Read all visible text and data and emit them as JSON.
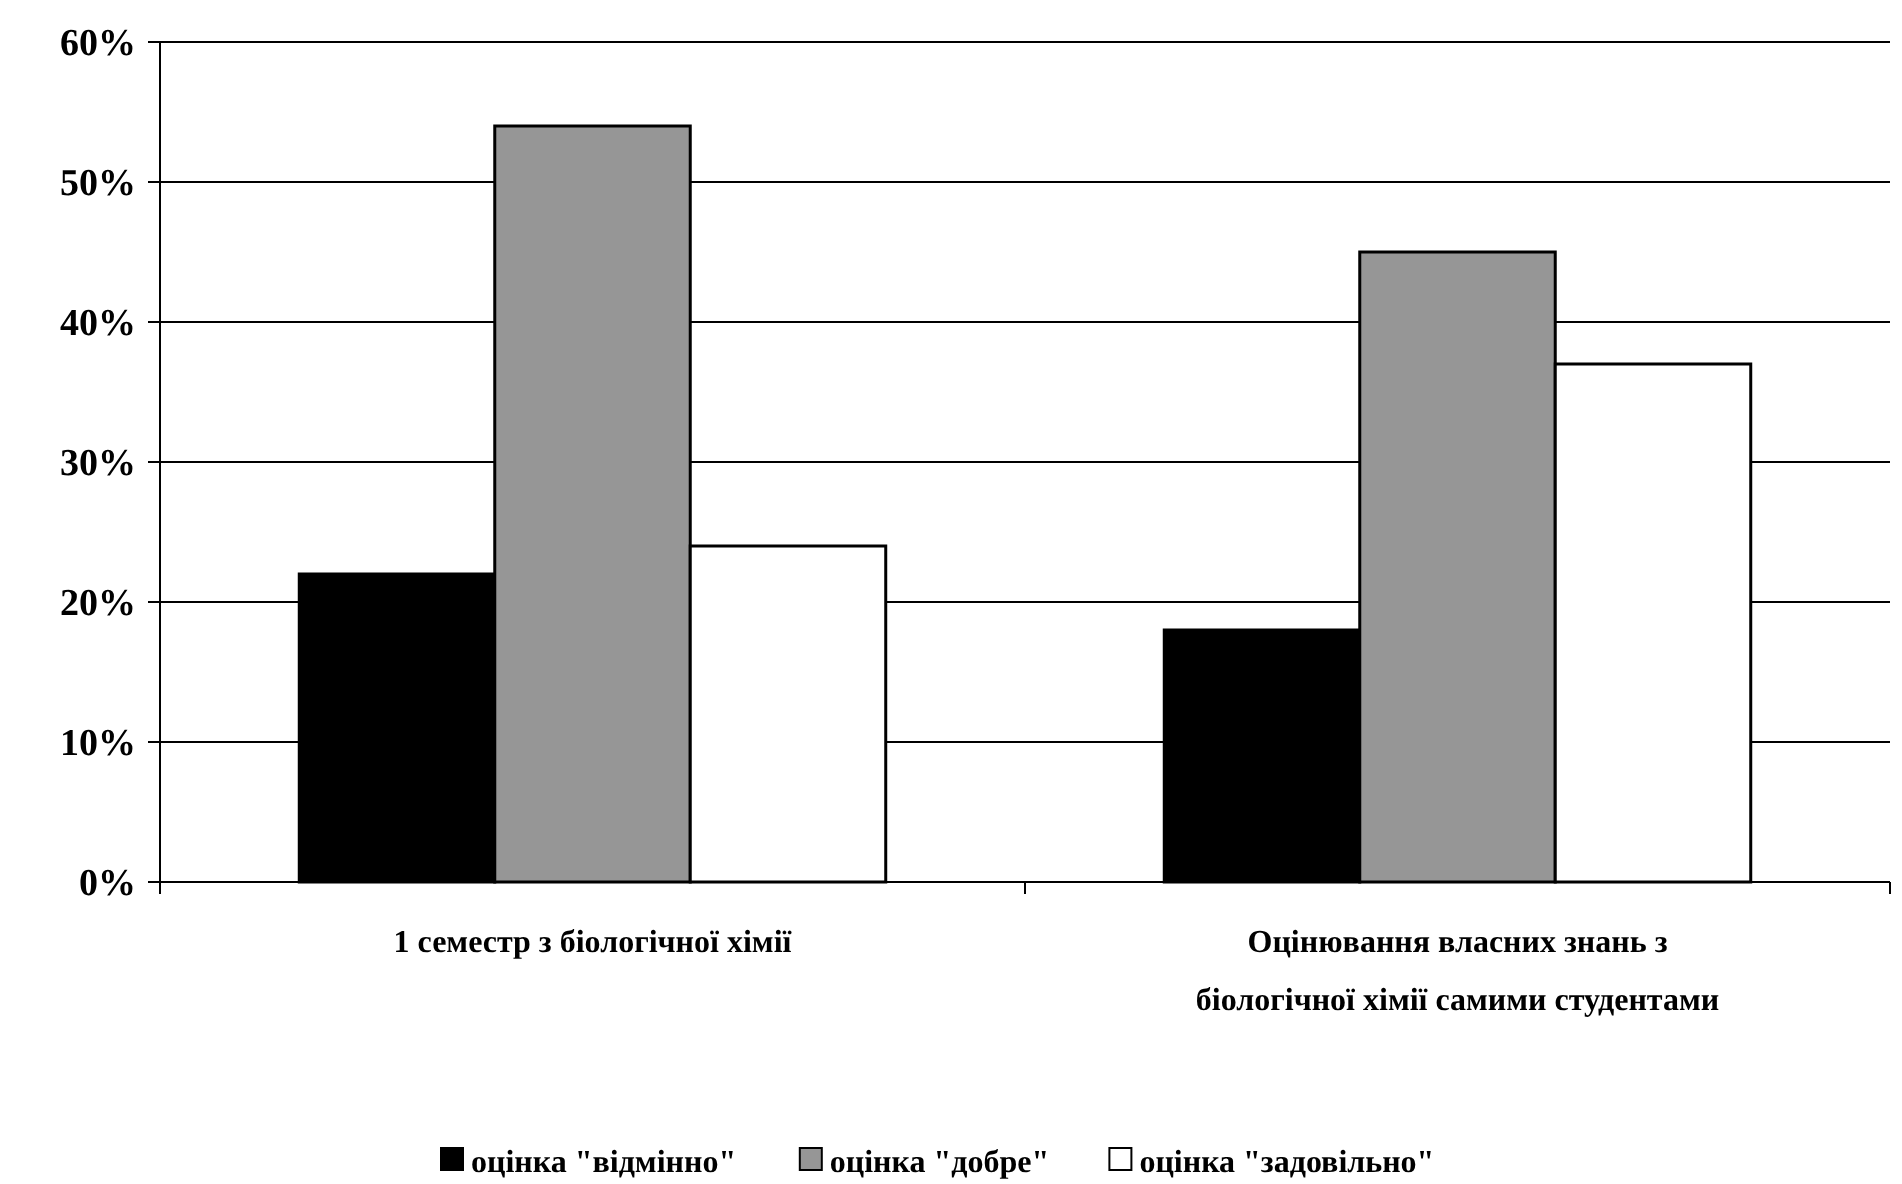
{
  "chart_data": {
    "type": "bar",
    "categories": [
      "1 семестр з біологічної хімії",
      "Оцінювання власних знань з біологічної хімії самими студентами"
    ],
    "series": [
      {
        "name": "оцінка \"відмінно\"",
        "color": "#000000",
        "values": [
          22,
          18
        ]
      },
      {
        "name": "оцінка \"добре\"",
        "color": "#969696",
        "values": [
          54,
          45
        ]
      },
      {
        "name": "оцінка \"задовільно\"",
        "color": "#ffffff",
        "values": [
          24,
          37
        ]
      }
    ],
    "ylim": [
      0,
      60
    ],
    "yticks": [
      {
        "value": 0,
        "label": "0%"
      },
      {
        "value": 10,
        "label": "10%"
      },
      {
        "value": 20,
        "label": "20%"
      },
      {
        "value": 30,
        "label": "30%"
      },
      {
        "value": 40,
        "label": "40%"
      },
      {
        "value": 50,
        "label": "50%"
      },
      {
        "value": 60,
        "label": "60%"
      }
    ],
    "grid": "y",
    "legend": "bottom"
  }
}
